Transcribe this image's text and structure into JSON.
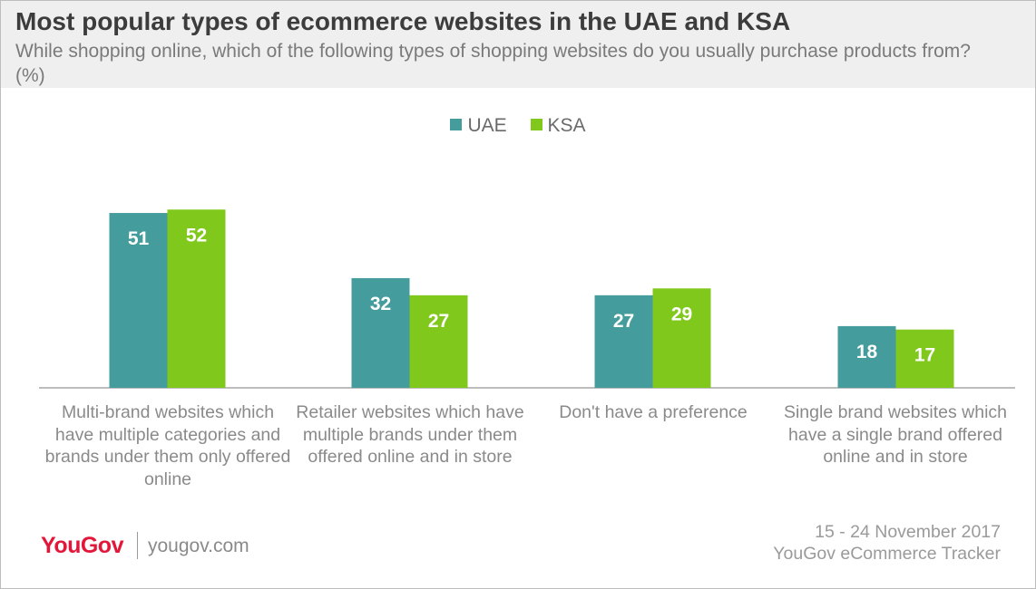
{
  "header": {
    "title": "Most popular types of ecommerce websites in the UAE and KSA",
    "subtitle": "While shopping online, which of the following types of shopping websites do you usually purchase products from? (%)"
  },
  "chart_data": {
    "type": "bar",
    "title": "Most popular types of ecommerce websites in the UAE and KSA",
    "subtitle": "While shopping online, which of the following types of shopping websites do you usually purchase products from? (%)",
    "categories": [
      "Multi-brand websites which have multiple categories and brands under them only offered online",
      "Retailer websites which have multiple brands under them offered online and in store",
      "Don't have a preference",
      "Single brand websites which have a single brand offered online and in store"
    ],
    "series": [
      {
        "name": "UAE",
        "values": [
          51,
          32,
          27,
          18
        ],
        "color": "#449c9c"
      },
      {
        "name": "KSA",
        "values": [
          52,
          27,
          29,
          17
        ],
        "color": "#80c91c"
      }
    ],
    "ylim": [
      0,
      60
    ],
    "grid": false,
    "legend_position": "top-center",
    "data_labels": true
  },
  "legend": [
    {
      "label": "UAE",
      "color": "#449c9c"
    },
    {
      "label": "KSA",
      "color": "#80c91c"
    }
  ],
  "footer": {
    "logo_text": "YouGov",
    "site": "yougov.com",
    "date_range": "15 - 24 November 2017",
    "source": "YouGov eCommerce Tracker"
  },
  "colors": {
    "uae": "#449c9c",
    "ksa": "#80c91c",
    "brand": "#e2173a"
  }
}
